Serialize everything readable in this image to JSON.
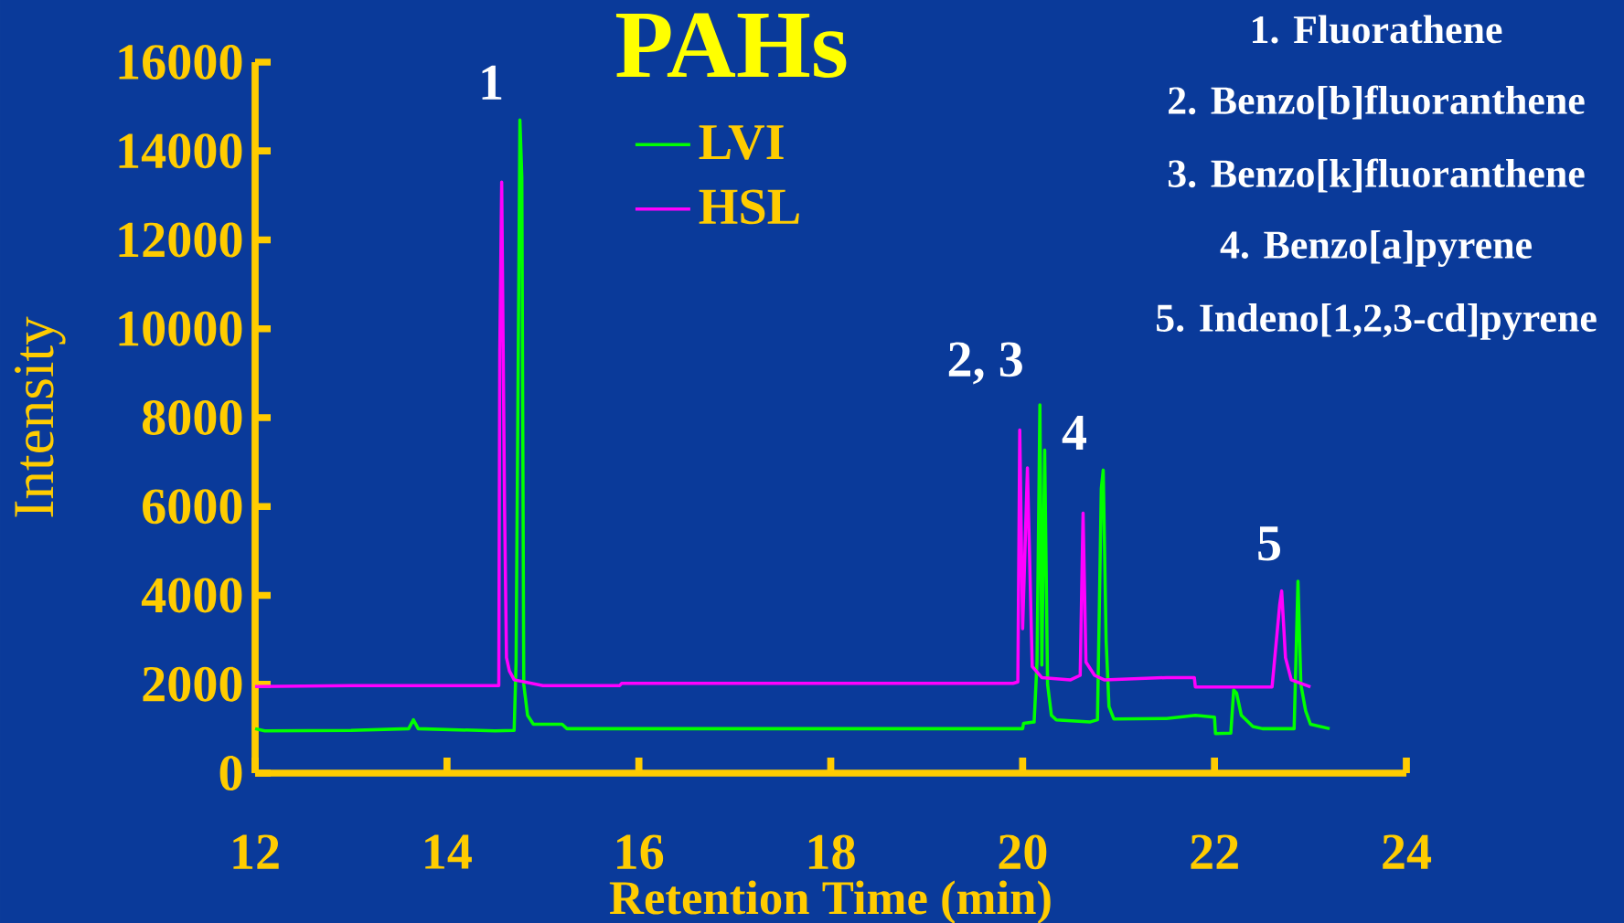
{
  "chart_data": {
    "type": "line",
    "title": "PAHs",
    "xlabel": "Retention Time (min)",
    "ylabel": "Intensity",
    "xlim": [
      12,
      24
    ],
    "ylim": [
      0,
      16000
    ],
    "xticks": [
      12,
      14,
      16,
      18,
      20,
      22,
      24
    ],
    "yticks": [
      0,
      2000,
      4000,
      6000,
      8000,
      10000,
      12000,
      14000,
      16000
    ],
    "legend": "top left",
    "series": [
      {
        "name": "LVI",
        "color": "#00ff00",
        "x": [
          12.0,
          12.1,
          13.0,
          13.6,
          13.65,
          13.7,
          14.5,
          14.7,
          14.72,
          14.76,
          14.78,
          14.8,
          14.84,
          14.9,
          15.2,
          15.25,
          16.0,
          19.8,
          20.0,
          20.01,
          20.12,
          20.15,
          20.18,
          20.2,
          20.23,
          20.26,
          20.3,
          20.35,
          20.7,
          20.78,
          20.82,
          20.84,
          20.87,
          20.9,
          20.95,
          21.5,
          21.8,
          22.0,
          22.01,
          22.17,
          22.2,
          22.23,
          22.28,
          22.4,
          22.5,
          22.83,
          22.87,
          22.9,
          22.95,
          23.0,
          23.2
        ],
        "values": [
          1000,
          950,
          960,
          1000,
          1200,
          1000,
          950,
          960,
          2500,
          14700,
          13400,
          2000,
          1300,
          1100,
          1100,
          1000,
          1000,
          1000,
          1000,
          1120,
          1150,
          2500,
          8290,
          2430,
          7270,
          2000,
          1300,
          1200,
          1150,
          1200,
          6400,
          6820,
          3000,
          1500,
          1220,
          1230,
          1300,
          1260,
          890,
          900,
          1870,
          1800,
          1300,
          1050,
          1000,
          1000,
          4320,
          2000,
          1400,
          1100,
          1000
        ]
      },
      {
        "name": "HSL",
        "color": "#ff00ff",
        "x": [
          12.0,
          13.0,
          14.54,
          14.55,
          14.57,
          14.6,
          14.62,
          14.65,
          14.7,
          15.0,
          15.8,
          15.82,
          19.9,
          19.95,
          19.97,
          20.0,
          20.05,
          20.1,
          20.2,
          20.5,
          20.6,
          20.63,
          20.66,
          20.75,
          20.85,
          21.5,
          21.79,
          21.8,
          22.6,
          22.68,
          22.7,
          22.74,
          22.8,
          23.0
        ],
        "values": [
          1950,
          1970,
          1970,
          9500,
          13300,
          6000,
          2600,
          2300,
          2100,
          1970,
          1970,
          2020,
          2020,
          2050,
          7720,
          3250,
          6870,
          2400,
          2150,
          2100,
          2200,
          5850,
          2500,
          2200,
          2100,
          2150,
          2150,
          1940,
          1940,
          3800,
          4100,
          2600,
          2100,
          1940
        ]
      }
    ],
    "annotations": [
      {
        "text": "1",
        "x": 14.76,
        "y": 14700
      },
      {
        "text": "2, 3",
        "x": 20.18,
        "y": 8290
      },
      {
        "text": "4",
        "x": 20.84,
        "y": 6820
      },
      {
        "text": "5",
        "x": 22.87,
        "y": 4320
      },
      "1. Fluorathene",
      "2. Benzo[b]fluoranthene",
      "3. Benzo[k]fluoranthene",
      "4. Benzo[a]pyrene",
      "5. Indeno[1,2,3-cd]pyrene"
    ]
  }
}
